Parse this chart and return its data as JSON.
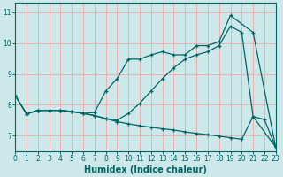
{
  "xlabel": "Humidex (Indice chaleur)",
  "bg_color": "#cce8e8",
  "grid_color": "#f0b0b0",
  "line_color": "#006666",
  "xlim": [
    0,
    23
  ],
  "ylim": [
    6.5,
    11.3
  ],
  "xticks": [
    0,
    1,
    2,
    3,
    4,
    5,
    6,
    7,
    8,
    9,
    10,
    11,
    12,
    13,
    14,
    15,
    16,
    17,
    18,
    19,
    20,
    21,
    22,
    23
  ],
  "yticks": [
    7,
    8,
    9,
    10,
    11
  ],
  "ytick_labels": [
    "7",
    "8",
    "9",
    "10",
    "11"
  ],
  "line1_x": [
    0,
    1,
    2,
    3,
    4,
    5,
    6,
    7,
    8,
    9,
    10,
    11,
    12,
    13,
    14,
    15,
    16,
    17,
    18,
    19,
    21,
    23
  ],
  "line1_y": [
    8.3,
    7.7,
    7.82,
    7.82,
    7.82,
    7.78,
    7.72,
    7.75,
    8.45,
    8.85,
    9.48,
    9.48,
    9.62,
    9.72,
    9.62,
    9.62,
    9.92,
    9.92,
    10.05,
    10.9,
    10.35,
    6.62
  ],
  "line2_x": [
    0,
    1,
    2,
    3,
    4,
    5,
    6,
    7,
    8,
    9,
    10,
    11,
    12,
    13,
    14,
    15,
    16,
    17,
    18,
    19,
    20,
    21,
    23
  ],
  "line2_y": [
    8.3,
    7.7,
    7.82,
    7.82,
    7.82,
    7.78,
    7.72,
    7.65,
    7.55,
    7.5,
    7.72,
    8.05,
    8.45,
    8.85,
    9.2,
    9.48,
    9.62,
    9.72,
    9.92,
    10.55,
    10.35,
    7.62,
    6.62
  ],
  "line3_x": [
    0,
    1,
    2,
    3,
    4,
    5,
    6,
    7,
    8,
    9,
    10,
    11,
    12,
    13,
    14,
    15,
    16,
    17,
    18,
    19,
    20,
    21,
    22,
    23
  ],
  "line3_y": [
    8.3,
    7.7,
    7.82,
    7.82,
    7.82,
    7.78,
    7.72,
    7.65,
    7.55,
    7.45,
    7.38,
    7.32,
    7.27,
    7.22,
    7.18,
    7.12,
    7.07,
    7.03,
    6.98,
    6.93,
    6.88,
    7.62,
    7.52,
    6.62
  ]
}
